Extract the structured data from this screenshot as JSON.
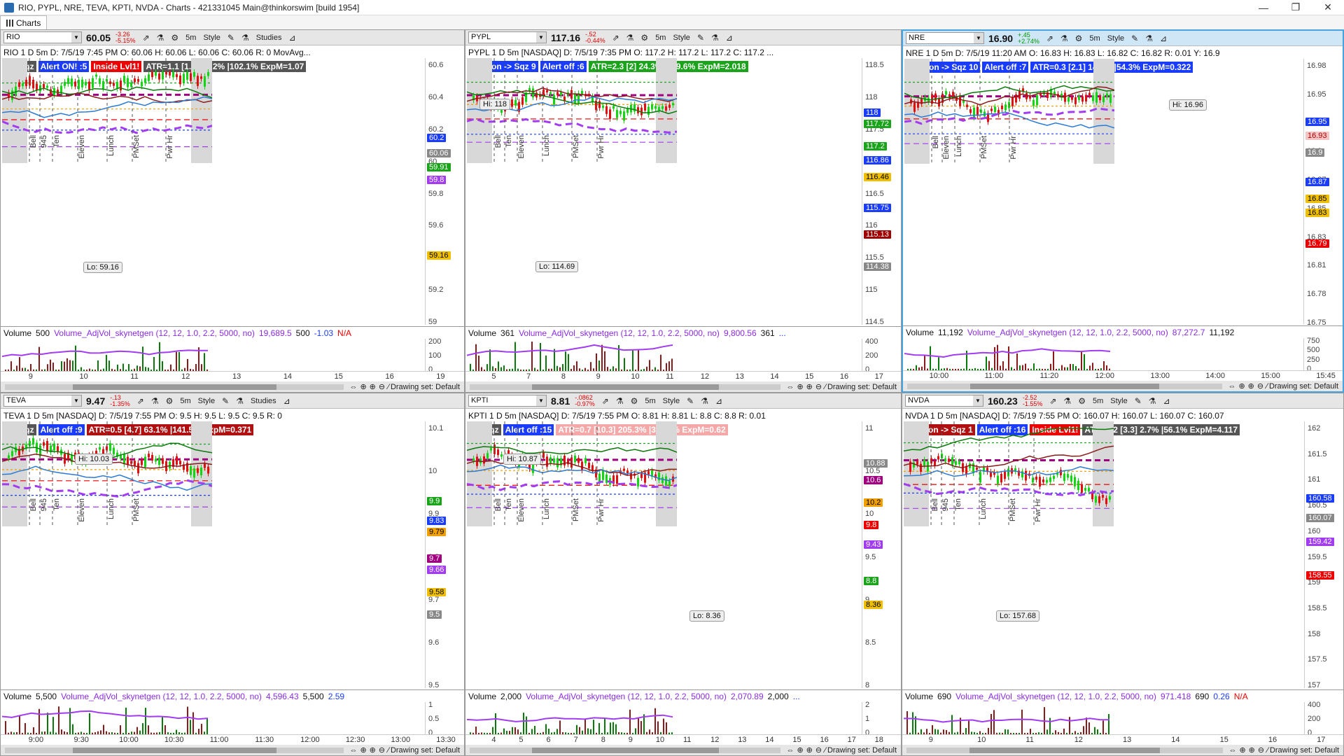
{
  "window": {
    "title": "RIO, PYPL, NRE, TEVA, KPTI, NVDA - Charts - 421331045 Main@thinkorswim [build 1954]",
    "min": "—",
    "max": "❐",
    "close": "✕"
  },
  "tab": {
    "label": "Charts"
  },
  "toolbar_common": {
    "interval": "5m",
    "style": "Style",
    "studies": "Studies",
    "drawing_set": "Drawing set: Default",
    "volume_label": "Volume",
    "volume_study": "Volume_AdjVol_skynetgen (12, 12, 1.0, 2.2, 5000, no)"
  },
  "panels": [
    {
      "symbol": "RIO",
      "price": "60.05",
      "chg1": "-3.26",
      "chg2": "-5.15%",
      "info": "RIO 1 D 5m  D: 7/5/19 7:45 PM  O: 60.06  H: 60.06  L: 60.06  C: 60.06  R: 0  MovAvg...",
      "badges": [
        {
          "t": "No Sqz",
          "c": "b-gray"
        },
        {
          "t": "Alert ON! :5",
          "c": "b-blue"
        },
        {
          "t": "Inside Lvl1!",
          "c": "b-red"
        },
        {
          "t": "ATR=1.1 [1.7] 12.2% |102.1% ExpM=1.07",
          "c": "b-gray"
        }
      ],
      "yticks": [
        "60.6",
        "60.4",
        "60.2",
        "60",
        "59.8",
        "59.6",
        "59.4",
        "59.2",
        "59"
      ],
      "plabels": [
        {
          "t": "60.2",
          "bg": "#1a3cff",
          "fg": "#fff",
          "y": 108
        },
        {
          "t": "60.06",
          "bg": "#888",
          "fg": "#fff",
          "y": 130
        },
        {
          "t": "59.91",
          "bg": "#19a41a",
          "fg": "#fff",
          "y": 150
        },
        {
          "t": "59.8",
          "bg": "#a23cf0",
          "fg": "#fff",
          "y": 168
        },
        {
          "t": "59.16",
          "bg": "#f0c000",
          "fg": "#000",
          "y": 276
        }
      ],
      "annotations": [
        {
          "t": "Lo: 59.16",
          "x": 118,
          "y": 291
        }
      ],
      "vlabels": [
        "Bell",
        "945",
        "Ten",
        "Eleven",
        "Lunch",
        "PMSet",
        "Pwr Hr"
      ],
      "vol": {
        "v": "500",
        "a": "19,689.5",
        "b": "500",
        "c": "-1.03",
        "d": "N/A"
      },
      "vyticks": [
        "200",
        "100",
        "0"
      ],
      "xticks": [
        "9",
        "10",
        "11",
        "12",
        "13",
        "14",
        "15",
        "16",
        "19"
      ]
    },
    {
      "symbol": "PYPL",
      "price": "117.16",
      "chg1": "-.52",
      "chg2": "-0.44%",
      "info": "PYPL 1 D 5m [NASDAQ]  D: 7/5/19 7:35 PM  O: 117.2  H: 117.2  L: 117.2  C: 117.2  ...",
      "badges": [
        {
          "t": "Caution -> Sqz 9",
          "c": "b-blue"
        },
        {
          "t": "Alert off :6",
          "c": "b-blue"
        },
        {
          "t": "ATR=2.3 [2] 24.3% |119.6% ExpM=2.018",
          "c": "b-green"
        }
      ],
      "yticks": [
        "118.5",
        "118",
        "117.5",
        "117",
        "116.5",
        "116",
        "115.5",
        "115",
        "114.5"
      ],
      "plabels": [
        {
          "t": "118",
          "bg": "#1a3cff",
          "fg": "#fff",
          "y": 72
        },
        {
          "t": "117.72",
          "bg": "#19a41a",
          "fg": "#fff",
          "y": 88
        },
        {
          "t": "117.2",
          "bg": "#19a41a",
          "fg": "#fff",
          "y": 120
        },
        {
          "t": "116.86",
          "bg": "#1a3cff",
          "fg": "#fff",
          "y": 140
        },
        {
          "t": "116.46",
          "bg": "#f0c000",
          "fg": "#000",
          "y": 164
        },
        {
          "t": "115.75",
          "bg": "#1a3cff",
          "fg": "#fff",
          "y": 208
        },
        {
          "t": "115.13",
          "bg": "#a00000",
          "fg": "#fff",
          "y": 246
        },
        {
          "t": "114.38",
          "bg": "#888",
          "fg": "#fff",
          "y": 292
        }
      ],
      "annotations": [
        {
          "t": "Hi: 118",
          "x": 20,
          "y": 58
        },
        {
          "t": "Lo: 114.69",
          "x": 100,
          "y": 290
        }
      ],
      "vlabels": [
        "Bell",
        "Ten",
        "Eleven",
        "Lunch",
        "PMSet",
        "Pwr Hr"
      ],
      "vol": {
        "v": "361",
        "a": "9,800.56",
        "b": "361",
        "c": "...",
        "d": ""
      },
      "vyticks": [
        "400",
        "200",
        "0"
      ],
      "xticks": [
        "5",
        "7",
        "8",
        "9",
        "10",
        "11",
        "12",
        "13",
        "14",
        "15",
        "16",
        "17"
      ]
    },
    {
      "symbol": "NRE",
      "price": "16.90",
      "chg1": "+.45",
      "chg2": "+2.74%",
      "info": "NRE 1 D 5m  D: 7/5/19 11:20 AM  O: 16.83  H: 16.83  L: 16.82  C: 16.82  R: 0.01  Y: 16.9",
      "badges": [
        {
          "t": "Caution -> Sqz 10",
          "c": "b-blue"
        },
        {
          "t": "Alert off :7",
          "c": "b-blue"
        },
        {
          "t": "ATR=0.3 [2.1] 14.7% |54.3% ExpM=0.322",
          "c": "b-blue"
        }
      ],
      "yticks": [
        "16.98",
        "16.95",
        "16.93",
        "16.9",
        "16.87",
        "16.85",
        "16.83",
        "16.81",
        "16.78",
        "16.75"
      ],
      "plabels": [
        {
          "t": "16.95",
          "bg": "#1a3cff",
          "fg": "#fff",
          "y": 84
        },
        {
          "t": "16.93",
          "bg": "#f5c4c4",
          "fg": "#a00",
          "y": 104
        },
        {
          "t": "16.9",
          "bg": "#888",
          "fg": "#fff",
          "y": 128
        },
        {
          "t": "16.87",
          "bg": "#1a3cff",
          "fg": "#fff",
          "y": 170
        },
        {
          "t": "16.85",
          "bg": "#f0c000",
          "fg": "#000",
          "y": 194
        },
        {
          "t": "16.83",
          "bg": "#f0c000",
          "fg": "#000",
          "y": 214
        },
        {
          "t": "16.79",
          "bg": "#e00",
          "fg": "#fff",
          "y": 258
        }
      ],
      "annotations": [
        {
          "t": "Hi: 16.96",
          "x": 380,
          "y": 58
        }
      ],
      "vlabels": [
        "Bell",
        "Eleven",
        "Lunch",
        "PMSet",
        "Pwr Hr"
      ],
      "vol": {
        "v": "11,192",
        "a": "87,272.7",
        "b": "11,192",
        "c": "",
        "d": ""
      },
      "vyticks": [
        "750",
        "500",
        "250",
        "0"
      ],
      "xticks": [
        "10:00",
        "11:00",
        "11:20",
        "12:00",
        "13:00",
        "14:00",
        "15:00",
        "15:45"
      ]
    },
    {
      "symbol": "TEVA",
      "price": "9.47",
      "chg1": "-.13",
      "chg2": "-1.35%",
      "info": "TEVA 1 D 5m [NASDAQ]  D: 7/5/19 7:55 PM  O: 9.5  H: 9.5  L: 9.5  C: 9.5  R: 0",
      "badges": [
        {
          "t": "No Sqz",
          "c": "b-gray"
        },
        {
          "t": "Alert off :9",
          "c": "b-blue"
        },
        {
          "t": "ATR=0.5 [4.7] 63.1% |141.5% ExpM=0.371",
          "c": "b-dred"
        }
      ],
      "yticks": [
        "10.1",
        "10",
        "9.9",
        "9.8",
        "9.7",
        "9.6",
        "9.5"
      ],
      "plabels": [
        {
          "t": "9.9",
          "bg": "#19a41a",
          "fg": "#fff",
          "y": 108
        },
        {
          "t": "9.83",
          "bg": "#1a3cff",
          "fg": "#fff",
          "y": 136
        },
        {
          "t": "9.79",
          "bg": "#f0a000",
          "fg": "#000",
          "y": 152
        },
        {
          "t": "9.7",
          "bg": "#a00080",
          "fg": "#fff",
          "y": 190
        },
        {
          "t": "9.66",
          "bg": "#a23cf0",
          "fg": "#fff",
          "y": 206
        },
        {
          "t": "9.58",
          "bg": "#f0c000",
          "fg": "#000",
          "y": 238
        },
        {
          "t": "9.5",
          "bg": "#888",
          "fg": "#fff",
          "y": 270
        }
      ],
      "annotations": [
        {
          "t": "Hi: 10.03",
          "x": 106,
          "y": 46
        }
      ],
      "vlabels": [
        "Bell",
        "945",
        "Ten",
        "Eleven",
        "Lunch",
        "PMSet"
      ],
      "vol": {
        "v": "5,500",
        "a": "4,596.43",
        "b": "5,500",
        "c": "2.59",
        "d": ""
      },
      "vyticks": [
        "1",
        "0.5",
        "0"
      ],
      "xticks": [
        "9:00",
        "9:30",
        "10:00",
        "10:30",
        "11:00",
        "11:30",
        "12:00",
        "12:30",
        "13:00",
        "13:30"
      ]
    },
    {
      "symbol": "KPTI",
      "price": "8.81",
      "chg1": "-.0862",
      "chg2": "-0.97%",
      "info": "KPTI 1 D 5m [NASDAQ]  D: 7/5/19 7:55 PM  O: 8.81  H: 8.81  L: 8.8  C: 8.8  R: 0.01",
      "badges": [
        {
          "t": "No Sqz",
          "c": "b-gray"
        },
        {
          "t": "Alert off :15",
          "c": "b-blue"
        },
        {
          "t": "ATR=0.7 [10.3] 205.3% |328.5% ExpM=0.62",
          "c": "b-pink"
        }
      ],
      "yticks": [
        "11",
        "10.5",
        "10",
        "9.5",
        "9",
        "8.5",
        "8"
      ],
      "plabels": [
        {
          "t": "10.88",
          "bg": "#888",
          "fg": "#fff",
          "y": 54
        },
        {
          "t": "10.6",
          "bg": "#a00080",
          "fg": "#fff",
          "y": 78
        },
        {
          "t": "10.2",
          "bg": "#f0a000",
          "fg": "#000",
          "y": 110
        },
        {
          "t": "9.8",
          "bg": "#e00",
          "fg": "#fff",
          "y": 142
        },
        {
          "t": "9.43",
          "bg": "#a23cf0",
          "fg": "#fff",
          "y": 170
        },
        {
          "t": "8.8",
          "bg": "#19a41a",
          "fg": "#fff",
          "y": 222
        },
        {
          "t": "8.36",
          "bg": "#f0c000",
          "fg": "#000",
          "y": 256
        }
      ],
      "annotations": [
        {
          "t": "Hi: 10.87",
          "x": 54,
          "y": 46
        },
        {
          "t": "Lo: 8.36",
          "x": 320,
          "y": 270
        }
      ],
      "vlabels": [
        "Bell",
        "Ten",
        "Eleven",
        "Lunch",
        "PMSet",
        "Pwr Hr"
      ],
      "vol": {
        "v": "2,000",
        "a": "2,070.89",
        "b": "2,000",
        "c": "...",
        "d": ""
      },
      "vyticks": [
        "2",
        "1",
        "0"
      ],
      "xticks": [
        "4",
        "5",
        "6",
        "7",
        "8",
        "9",
        "10",
        "11",
        "12",
        "13",
        "14",
        "15",
        "16",
        "17",
        "18"
      ]
    },
    {
      "symbol": "NVDA",
      "price": "160.23",
      "chg1": "-2.52",
      "chg2": "-1.55%",
      "info": "NVDA 1 D 5m [NASDAQ]  D: 7/5/19 7:55 PM  O: 160.07  H: 160.07  L: 160.07  C: 160.07",
      "badges": [
        {
          "t": "Caution -> Sqz 1",
          "c": "b-dred"
        },
        {
          "t": "Alert off :16",
          "c": "b-blue"
        },
        {
          "t": "Inside Lvl1!",
          "c": "b-red"
        },
        {
          "t": "ATR=5.2 [3.3] 2.7% |56.1% ExpM=4.117",
          "c": "b-gray"
        }
      ],
      "yticks": [
        "162",
        "161.5",
        "161",
        "160.5",
        "160",
        "159.5",
        "159",
        "158.5",
        "158",
        "157.5",
        "157"
      ],
      "plabels": [
        {
          "t": "160.58",
          "bg": "#1a3cff",
          "fg": "#fff",
          "y": 104
        },
        {
          "t": "160.07",
          "bg": "#888",
          "fg": "#fff",
          "y": 132
        },
        {
          "t": "159.42",
          "bg": "#a23cf0",
          "fg": "#fff",
          "y": 166
        },
        {
          "t": "158.55",
          "bg": "#e00",
          "fg": "#fff",
          "y": 214
        }
      ],
      "annotations": [
        {
          "t": "Lo: 157.68",
          "x": 134,
          "y": 270
        }
      ],
      "vlabels": [
        "Bell",
        "945",
        "Ten",
        "Lunch",
        "PMSet",
        "Pwr Hr"
      ],
      "vol": {
        "v": "690",
        "a": "971.418",
        "b": "690",
        "c": "0.26",
        "d": "N/A"
      },
      "vyticks": [
        "400",
        "200",
        "0"
      ],
      "xticks": [
        "9",
        "10",
        "11",
        "12",
        "13",
        "14",
        "15",
        "16",
        "17"
      ]
    }
  ]
}
